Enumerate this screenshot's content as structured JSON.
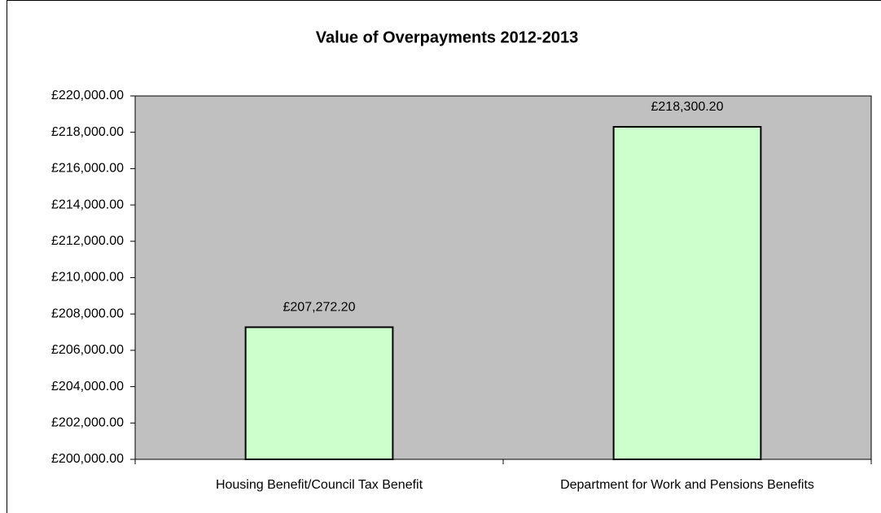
{
  "chart_data": {
    "type": "bar",
    "title": "Value of Overpayments 2012-2013",
    "categories": [
      "Housing Benefit/Council Tax Benefit",
      "Department for Work and Pensions Benefits"
    ],
    "values": [
      207272.2,
      218300.2
    ],
    "value_labels": [
      "£207,272.20",
      "£218,300.20"
    ],
    "color": "#ccffcc",
    "ylim": [
      200000,
      220000
    ],
    "yticks": [
      {
        "value": 200000,
        "label": "£200,000.00"
      },
      {
        "value": 202000,
        "label": "£202,000.00"
      },
      {
        "value": 204000,
        "label": "£204,000.00"
      },
      {
        "value": 206000,
        "label": "£206,000.00"
      },
      {
        "value": 208000,
        "label": "£208,000.00"
      },
      {
        "value": 210000,
        "label": "£210,000.00"
      },
      {
        "value": 212000,
        "label": "£212,000.00"
      },
      {
        "value": 214000,
        "label": "£214,000.00"
      },
      {
        "value": 216000,
        "label": "£216,000.00"
      },
      {
        "value": 218000,
        "label": "£218,000.00"
      },
      {
        "value": 220000,
        "label": "£220,000.00"
      }
    ],
    "grid": false
  }
}
